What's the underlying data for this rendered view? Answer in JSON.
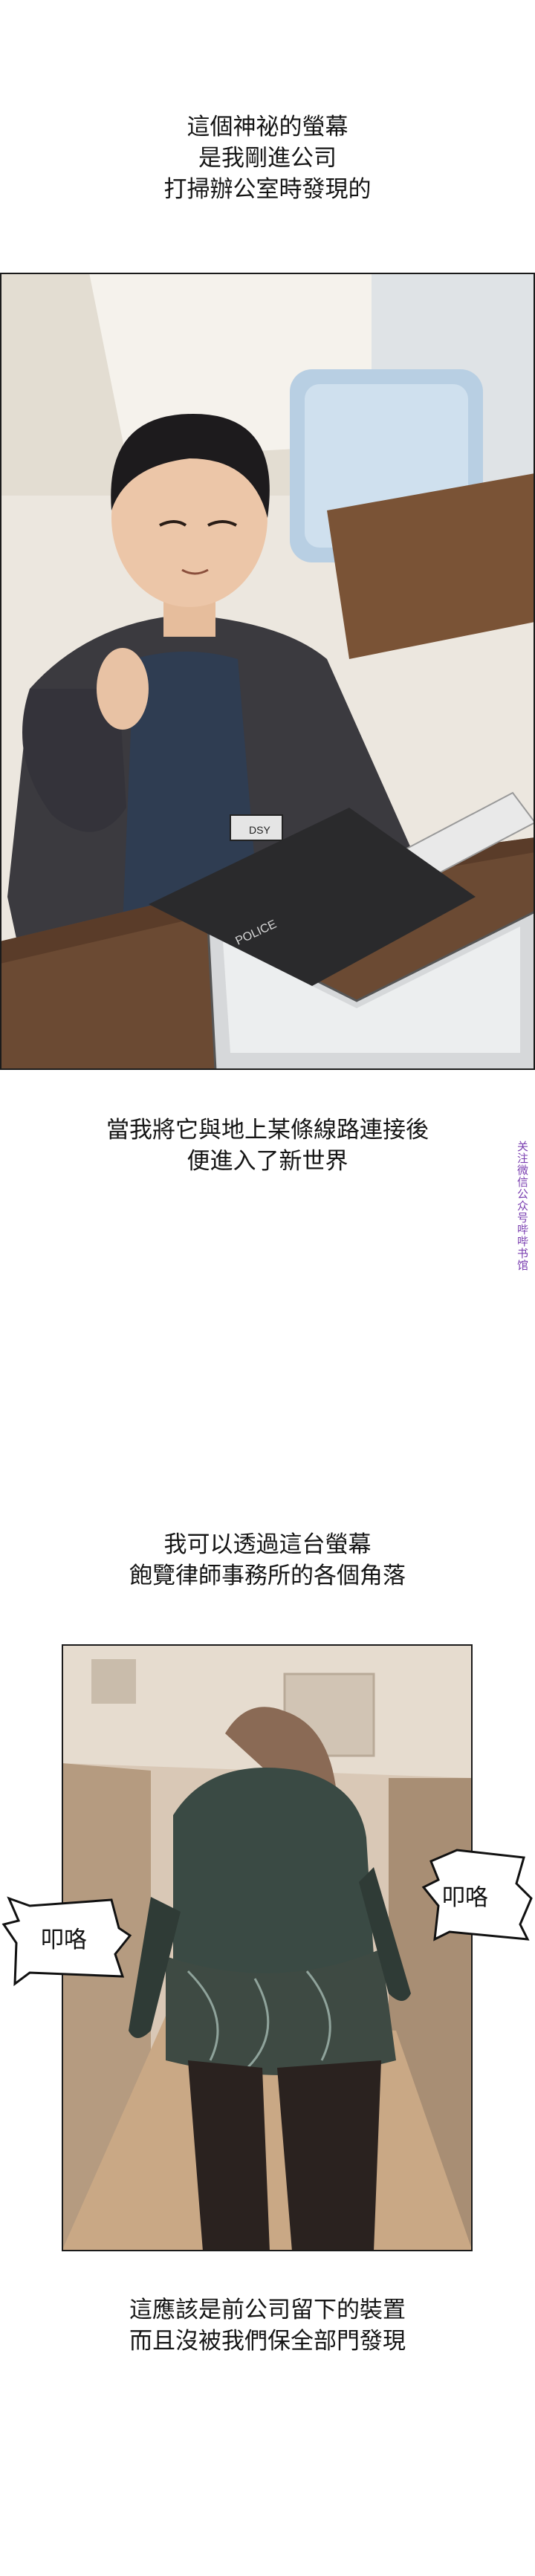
{
  "captions": {
    "intro": [
      "這個神祕的螢幕",
      "是我剛進公司",
      "打掃辦公室時發現的"
    ],
    "connect": [
      "當我將它與地上某條線路連接後",
      "便進入了新世界"
    ],
    "see": [
      "我可以透過這台螢幕",
      "飽覽律師事務所的各個角落"
    ],
    "device": [
      "這應該是前公司留下的裝置",
      "而且沒被我們保全部門發現"
    ]
  },
  "panel1": {
    "badge_text": "DSY",
    "monitor_label": "POLICE"
  },
  "panel2": {
    "sfx_right": "叩咯",
    "sfx_left": "叩咯"
  },
  "watermark": "关注微信公众号哔哔书馆",
  "colors": {
    "panel_border": "#1b1b1b",
    "jacket": "#3b3a3f",
    "desk": "#6b4a33",
    "skirt": "#3e4a43",
    "stockings": "#2a221f",
    "watermark": "#7a3fb0"
  }
}
